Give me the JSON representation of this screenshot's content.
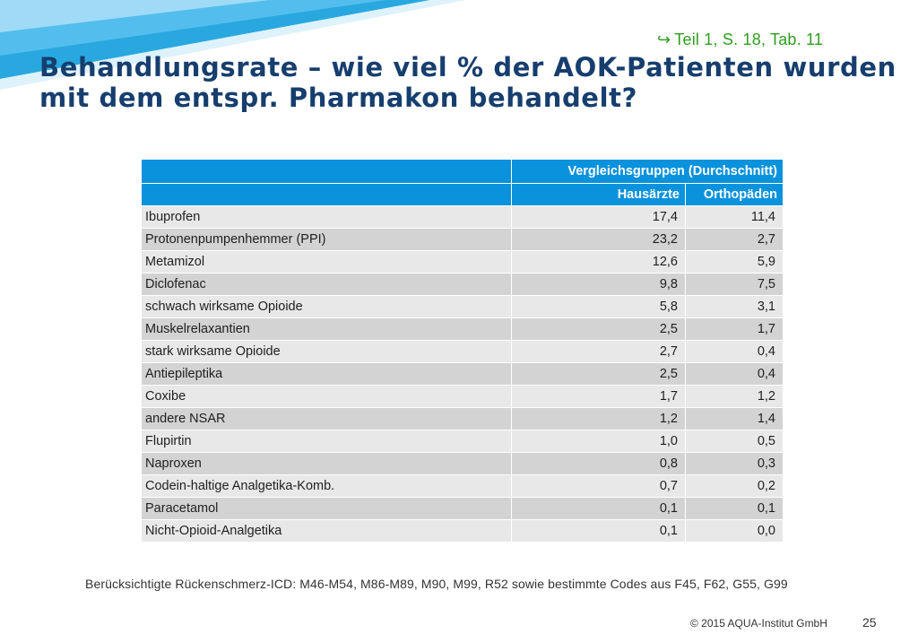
{
  "slide": {
    "reference": {
      "icon": "return-arrow-icon",
      "text": "Teil  1, S. 18, Tab. 11"
    },
    "title": "Behandlungsrate – wie viel % der AOK-Patienten wurden mit dem entspr. Pharmakon behandelt?",
    "table": {
      "group_header": "Vergleichsgruppen (Durchschnitt)",
      "columns": [
        "Hausärzte",
        "Orthopäden"
      ],
      "rows": [
        {
          "label": "Ibuprofen",
          "hausaerzte": "17,4",
          "orthopaeden": "11,4"
        },
        {
          "label": "Protonenpumpenhemmer  (PPI)",
          "hausaerzte": "23,2",
          "orthopaeden": "2,7"
        },
        {
          "label": "Metamizol",
          "hausaerzte": "12,6",
          "orthopaeden": "5,9"
        },
        {
          "label": "Diclofenac",
          "hausaerzte": "9,8",
          "orthopaeden": "7,5"
        },
        {
          "label": "schwach wirksame Opioide",
          "hausaerzte": "5,8",
          "orthopaeden": "3,1"
        },
        {
          "label": "Muskelrelaxantien",
          "hausaerzte": "2,5",
          "orthopaeden": "1,7"
        },
        {
          "label": "stark wirksame Opioide",
          "hausaerzte": "2,7",
          "orthopaeden": "0,4"
        },
        {
          "label": "Antiepileptika",
          "hausaerzte": "2,5",
          "orthopaeden": "0,4"
        },
        {
          "label": "Coxibe",
          "hausaerzte": "1,7",
          "orthopaeden": "1,2"
        },
        {
          "label": "andere NSAR",
          "hausaerzte": "1,2",
          "orthopaeden": "1,4"
        },
        {
          "label": "Flupirtin",
          "hausaerzte": "1,0",
          "orthopaeden": "0,5"
        },
        {
          "label": "Naproxen",
          "hausaerzte": "0,8",
          "orthopaeden": "0,3"
        },
        {
          "label": "Codein-haltige Analgetika-Komb.",
          "hausaerzte": "0,7",
          "orthopaeden": "0,2"
        },
        {
          "label": "Paracetamol",
          "hausaerzte": "0,1",
          "orthopaeden": "0,1"
        },
        {
          "label": "Nicht-Opioid-Analgetika",
          "hausaerzte": "0,1",
          "orthopaeden": "0,0"
        }
      ]
    },
    "note": "Berücksichtigte Rückenschmerz-ICD: M46-M54,  M86-M89,  M90,  M99,  R52 sowie bestimmte Codes aus F45,  F62,  G55,  G99",
    "footer": {
      "copyright": "© 2015 AQUA-Institut GmbH",
      "page_number": "25"
    },
    "colors": {
      "header_blue": "#0a92dc",
      "title_navy": "#163e6e",
      "reference_green": "#2f9e1f",
      "row_light": "#e8e8e8",
      "row_dark": "#d3d3d3"
    }
  }
}
